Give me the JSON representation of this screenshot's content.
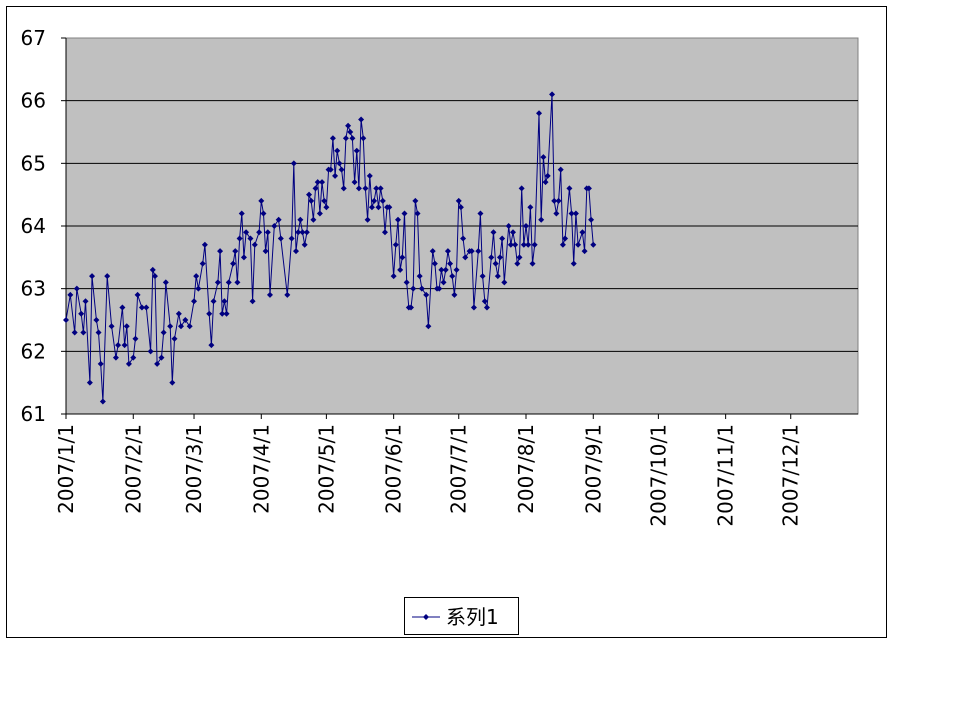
{
  "chart_data": {
    "type": "line",
    "x": [
      "2007/1/1",
      "2007/1/3",
      "2007/1/5",
      "2007/1/6",
      "2007/1/8",
      "2007/1/9",
      "2007/1/10",
      "2007/1/12",
      "2007/1/13",
      "2007/1/15",
      "2007/1/16",
      "2007/1/17",
      "2007/1/18",
      "2007/1/20",
      "2007/1/22",
      "2007/1/24",
      "2007/1/25",
      "2007/1/27",
      "2007/1/28",
      "2007/1/29",
      "2007/1/30",
      "2007/2/1",
      "2007/2/2",
      "2007/2/3",
      "2007/2/5",
      "2007/2/7",
      "2007/2/9",
      "2007/2/10",
      "2007/2/11",
      "2007/2/12",
      "2007/2/14",
      "2007/2/15",
      "2007/2/16",
      "2007/2/18",
      "2007/2/19",
      "2007/2/20",
      "2007/2/22",
      "2007/2/23",
      "2007/2/25",
      "2007/2/27",
      "2007/3/1",
      "2007/3/2",
      "2007/3/3",
      "2007/3/5",
      "2007/3/6",
      "2007/3/8",
      "2007/3/9",
      "2007/3/10",
      "2007/3/12",
      "2007/3/13",
      "2007/3/14",
      "2007/3/15",
      "2007/3/16",
      "2007/3/17",
      "2007/3/19",
      "2007/3/20",
      "2007/3/21",
      "2007/3/22",
      "2007/3/23",
      "2007/3/24",
      "2007/3/25",
      "2007/3/27",
      "2007/3/28",
      "2007/3/29",
      "2007/3/31",
      "2007/4/1",
      "2007/4/2",
      "2007/4/3",
      "2007/4/4",
      "2007/4/5",
      "2007/4/7",
      "2007/4/9",
      "2007/4/10",
      "2007/4/13",
      "2007/4/15",
      "2007/4/16",
      "2007/4/17",
      "2007/4/18",
      "2007/4/19",
      "2007/4/20",
      "2007/4/21",
      "2007/4/22",
      "2007/4/23",
      "2007/4/24",
      "2007/4/25",
      "2007/4/26",
      "2007/4/27",
      "2007/4/28",
      "2007/4/29",
      "2007/4/30",
      "2007/5/1",
      "2007/5/2",
      "2007/5/3",
      "2007/5/4",
      "2007/5/5",
      "2007/5/6",
      "2007/5/7",
      "2007/5/8",
      "2007/5/9",
      "2007/5/10",
      "2007/5/11",
      "2007/5/12",
      "2007/5/13",
      "2007/5/14",
      "2007/5/15",
      "2007/5/16",
      "2007/5/17",
      "2007/5/18",
      "2007/5/19",
      "2007/5/20",
      "2007/5/21",
      "2007/5/22",
      "2007/5/23",
      "2007/5/24",
      "2007/5/25",
      "2007/5/26",
      "2007/5/27",
      "2007/5/28",
      "2007/5/29",
      "2007/5/30",
      "2007/6/1",
      "2007/6/2",
      "2007/6/3",
      "2007/6/4",
      "2007/6/5",
      "2007/6/6",
      "2007/6/7",
      "2007/6/8",
      "2007/6/9",
      "2007/6/10",
      "2007/6/11",
      "2007/6/12",
      "2007/6/13",
      "2007/6/14",
      "2007/6/16",
      "2007/6/17",
      "2007/6/19",
      "2007/6/20",
      "2007/6/21",
      "2007/6/22",
      "2007/6/23",
      "2007/6/24",
      "2007/6/25",
      "2007/6/26",
      "2007/6/27",
      "2007/6/28",
      "2007/6/29",
      "2007/6/30",
      "2007/7/1",
      "2007/7/2",
      "2007/7/3",
      "2007/7/4",
      "2007/7/6",
      "2007/7/7",
      "2007/7/8",
      "2007/7/10",
      "2007/7/11",
      "2007/7/12",
      "2007/7/13",
      "2007/7/14",
      "2007/7/16",
      "2007/7/17",
      "2007/7/18",
      "2007/7/19",
      "2007/7/20",
      "2007/7/21",
      "2007/7/22",
      "2007/7/24",
      "2007/7/25",
      "2007/7/26",
      "2007/7/27",
      "2007/7/28",
      "2007/7/29",
      "2007/7/30",
      "2007/7/31",
      "2007/8/1",
      "2007/8/2",
      "2007/8/3",
      "2007/8/4",
      "2007/8/5",
      "2007/8/7",
      "2007/8/8",
      "2007/8/9",
      "2007/8/10",
      "2007/8/11",
      "2007/8/13",
      "2007/8/14",
      "2007/8/15",
      "2007/8/16",
      "2007/8/17",
      "2007/8/18",
      "2007/8/19",
      "2007/8/21",
      "2007/8/22",
      "2007/8/23",
      "2007/8/24",
      "2007/8/25",
      "2007/8/27",
      "2007/8/28",
      "2007/8/29",
      "2007/8/30",
      "2007/8/31",
      "2007/9/1"
    ],
    "series": [
      {
        "name": "系列1",
        "color": "#000080",
        "values": [
          62.5,
          62.9,
          62.3,
          63.0,
          62.6,
          62.3,
          62.8,
          61.5,
          63.2,
          62.5,
          62.3,
          61.8,
          61.2,
          63.2,
          62.4,
          61.9,
          62.1,
          62.7,
          62.1,
          62.4,
          61.8,
          61.9,
          62.2,
          62.9,
          62.7,
          62.7,
          62.0,
          63.3,
          63.2,
          61.8,
          61.9,
          62.3,
          63.1,
          62.4,
          61.5,
          62.2,
          62.6,
          62.4,
          62.5,
          62.4,
          62.8,
          63.2,
          63.0,
          63.4,
          63.7,
          62.6,
          62.1,
          62.8,
          63.1,
          63.6,
          62.6,
          62.8,
          62.6,
          63.1,
          63.4,
          63.6,
          63.1,
          63.8,
          64.2,
          63.5,
          63.9,
          63.8,
          62.8,
          63.7,
          63.9,
          64.4,
          64.2,
          63.6,
          63.9,
          62.9,
          64.0,
          64.1,
          63.8,
          62.9,
          63.8,
          65.0,
          63.6,
          63.9,
          64.1,
          63.9,
          63.7,
          63.9,
          64.5,
          64.4,
          64.1,
          64.6,
          64.7,
          64.2,
          64.7,
          64.4,
          64.3,
          64.9,
          64.9,
          65.4,
          64.8,
          65.2,
          65.0,
          64.9,
          64.6,
          65.4,
          65.6,
          65.5,
          65.4,
          64.7,
          65.2,
          64.6,
          65.7,
          65.4,
          64.6,
          64.1,
          64.8,
          64.3,
          64.4,
          64.6,
          64.3,
          64.6,
          64.4,
          63.9,
          64.3,
          64.3,
          63.2,
          63.7,
          64.1,
          63.3,
          63.5,
          64.2,
          63.1,
          62.7,
          62.7,
          63.0,
          64.4,
          64.2,
          63.2,
          63.0,
          62.9,
          62.4,
          63.6,
          63.4,
          63.0,
          63.0,
          63.3,
          63.1,
          63.3,
          63.6,
          63.4,
          63.2,
          62.9,
          63.3,
          64.4,
          64.3,
          63.8,
          63.5,
          63.6,
          63.6,
          62.7,
          63.6,
          64.2,
          63.2,
          62.8,
          62.7,
          63.5,
          63.9,
          63.4,
          63.2,
          63.5,
          63.8,
          63.1,
          64.0,
          63.7,
          63.9,
          63.7,
          63.4,
          63.5,
          64.6,
          63.7,
          64.0,
          63.7,
          64.3,
          63.4,
          63.7,
          65.8,
          64.1,
          65.1,
          64.7,
          64.8,
          66.1,
          64.4,
          64.2,
          64.4,
          64.9,
          63.7,
          63.8,
          64.6,
          64.2,
          63.4,
          64.2,
          63.7,
          63.9,
          63.6,
          64.6,
          64.6,
          64.1,
          63.7
        ]
      }
    ],
    "xlim": [
      "2007/1/1",
      "2008/1/1"
    ],
    "xticks": [
      "2007/1/1",
      "2007/2/1",
      "2007/3/1",
      "2007/4/1",
      "2007/5/1",
      "2007/6/1",
      "2007/7/1",
      "2007/8/1",
      "2007/9/1",
      "2007/10/1",
      "2007/11/1",
      "2007/12/1"
    ],
    "ylim": [
      61,
      67
    ],
    "yticks": [
      61,
      62,
      63,
      64,
      65,
      66,
      67
    ],
    "grid": true,
    "legend": "bottom"
  }
}
